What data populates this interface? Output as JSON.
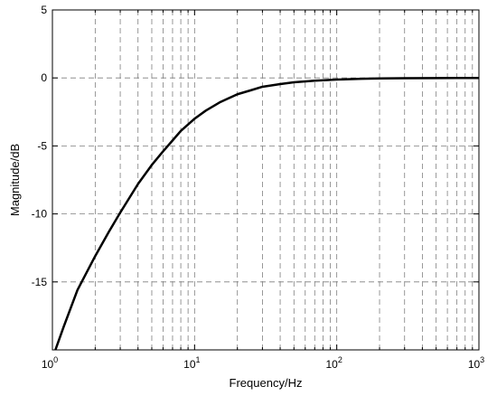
{
  "chart_data": {
    "type": "line",
    "title": "",
    "xlabel": "Frequency/Hz",
    "ylabel": "Magnitude/dB",
    "x_scale": "log",
    "xlim": [
      1,
      1000
    ],
    "ylim": [
      -20,
      5
    ],
    "x_ticks": [
      {
        "base": "10",
        "exp": "0"
      },
      {
        "base": "10",
        "exp": "1"
      },
      {
        "base": "10",
        "exp": "2"
      },
      {
        "base": "10",
        "exp": "3"
      }
    ],
    "y_ticks": [
      "5",
      "0",
      "-5",
      "-10",
      "-15"
    ],
    "y_tick_values": [
      5,
      0,
      -5,
      -10,
      -15
    ],
    "grid": true,
    "grid_style": "dashed",
    "colors": {
      "line": "#000000",
      "grid": "#7f7f7f",
      "axes": "#000000"
    },
    "series": [
      {
        "x": [
          1.05,
          1.2,
          1.5,
          2,
          2.5,
          3,
          4,
          5,
          6,
          7,
          8,
          10,
          12,
          15,
          20,
          25,
          30,
          40,
          50,
          70,
          100,
          150,
          200,
          300,
          500,
          700,
          1000
        ],
        "values": [
          -20,
          -18.3,
          -15.6,
          -13.1,
          -11.3,
          -9.9,
          -7.8,
          -6.4,
          -5.4,
          -4.6,
          -3.9,
          -3.0,
          -2.4,
          -1.8,
          -1.2,
          -0.9,
          -0.65,
          -0.45,
          -0.32,
          -0.2,
          -0.12,
          -0.06,
          -0.04,
          -0.02,
          -0.01,
          0,
          0
        ]
      }
    ]
  }
}
